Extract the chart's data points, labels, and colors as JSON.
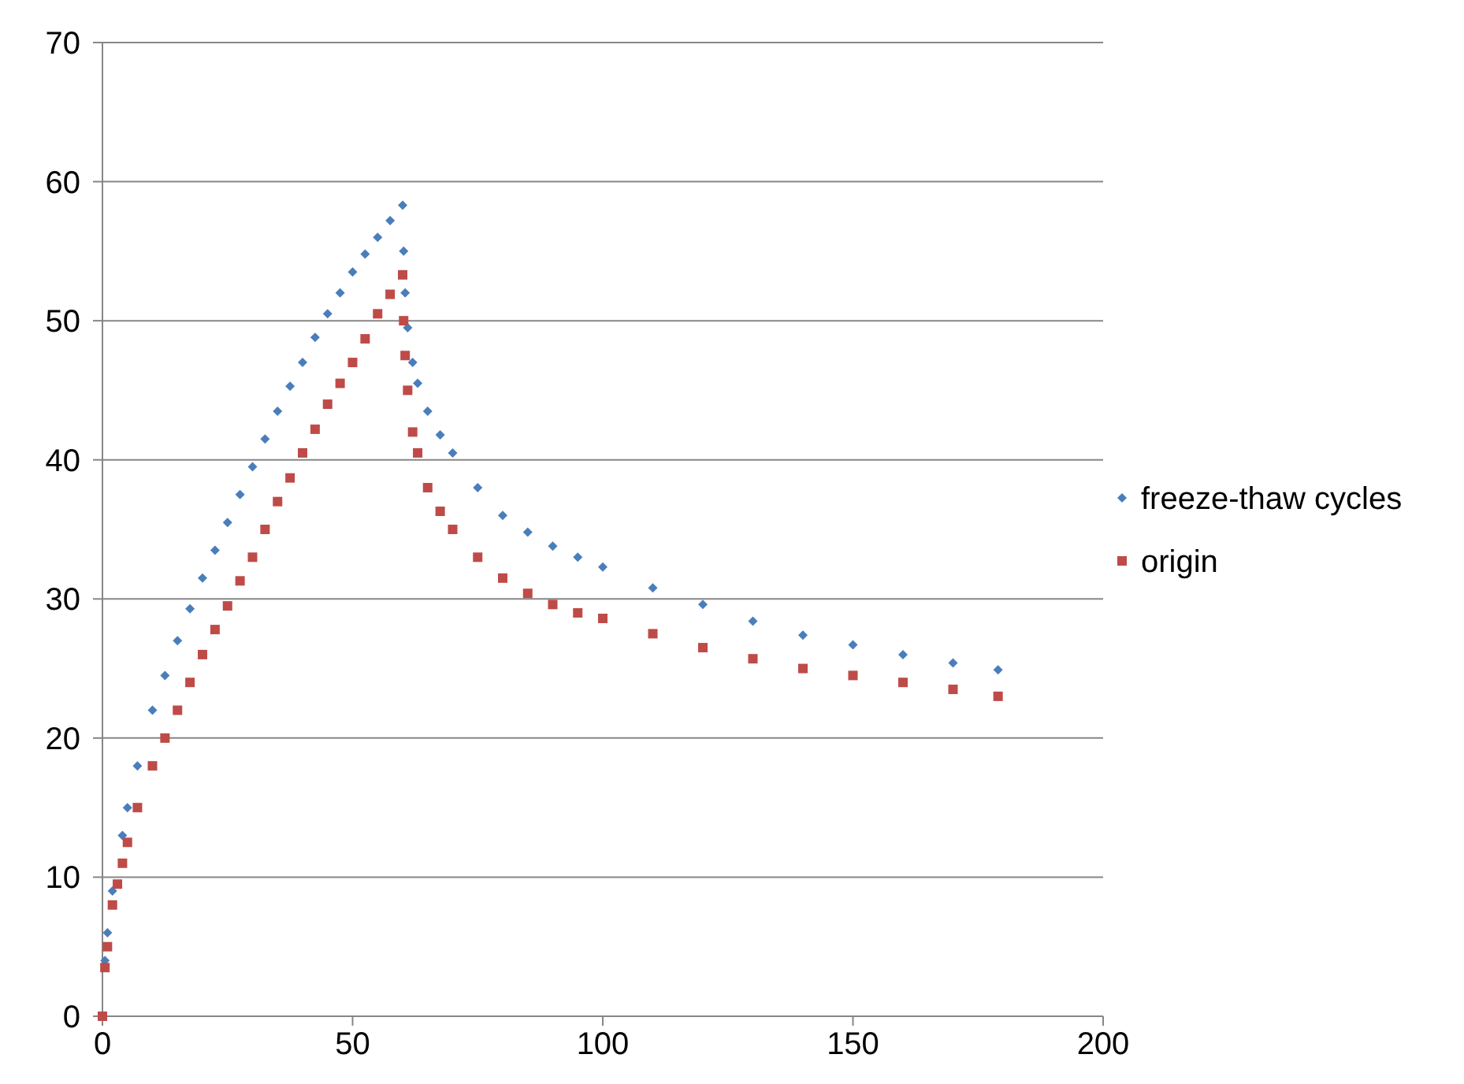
{
  "chart_data": {
    "type": "scatter",
    "xlim": [
      0,
      200
    ],
    "ylim": [
      0,
      70
    ],
    "xticks": [
      0,
      50,
      100,
      150,
      200
    ],
    "yticks": [
      0,
      10,
      20,
      30,
      40,
      50,
      60,
      70
    ],
    "grid": "y",
    "legend": "right",
    "series": [
      {
        "name": "freeze-thaw cycles",
        "color": "#4a7ebb",
        "marker": "diamond",
        "x": [
          0.5,
          1,
          2,
          4,
          5,
          7,
          10,
          12.5,
          15,
          17.5,
          20,
          22.5,
          25,
          27.5,
          30,
          32.5,
          35,
          37.5,
          40,
          42.5,
          45,
          47.5,
          50,
          52.5,
          55,
          57.5,
          60,
          60.2,
          60.5,
          61,
          62,
          63,
          65,
          67.5,
          70,
          75,
          80,
          85,
          90,
          95,
          100,
          110,
          120,
          130,
          140,
          150,
          160,
          170,
          179
        ],
        "values": [
          4,
          6,
          9,
          13,
          15,
          18,
          22,
          24.5,
          27,
          29.3,
          31.5,
          33.5,
          35.5,
          37.5,
          39.5,
          41.5,
          43.5,
          45.3,
          47,
          48.8,
          50.5,
          52,
          53.5,
          54.8,
          56,
          57.2,
          58.3,
          55,
          52,
          49.5,
          47,
          45.5,
          43.5,
          41.8,
          40.5,
          38,
          36,
          34.8,
          33.8,
          33,
          32.3,
          30.8,
          29.6,
          28.4,
          27.4,
          26.7,
          26,
          25.4,
          24.9
        ]
      },
      {
        "name": "origin",
        "color": "#be4b48",
        "marker": "square",
        "x": [
          0,
          0.5,
          1,
          2,
          3,
          4,
          5,
          7,
          10,
          12.5,
          15,
          17.5,
          20,
          22.5,
          25,
          27.5,
          30,
          32.5,
          35,
          37.5,
          40,
          42.5,
          45,
          47.5,
          50,
          52.5,
          55,
          57.5,
          60,
          60.2,
          60.5,
          61,
          62,
          63,
          65,
          67.5,
          70,
          75,
          80,
          85,
          90,
          95,
          100,
          110,
          120,
          130,
          140,
          150,
          160,
          170,
          179
        ],
        "values": [
          0,
          3.5,
          5,
          8,
          9.5,
          11,
          12.5,
          15,
          18,
          20,
          22,
          24,
          26,
          27.8,
          29.5,
          31.3,
          33,
          35,
          37,
          38.7,
          40.5,
          42.2,
          44,
          45.5,
          47,
          48.7,
          50.5,
          51.9,
          53.3,
          50,
          47.5,
          45,
          42,
          40.5,
          38,
          36.3,
          35,
          33,
          31.5,
          30.4,
          29.6,
          29,
          28.6,
          27.5,
          26.5,
          25.7,
          25,
          24.5,
          24,
          23.5,
          23
        ]
      }
    ]
  }
}
